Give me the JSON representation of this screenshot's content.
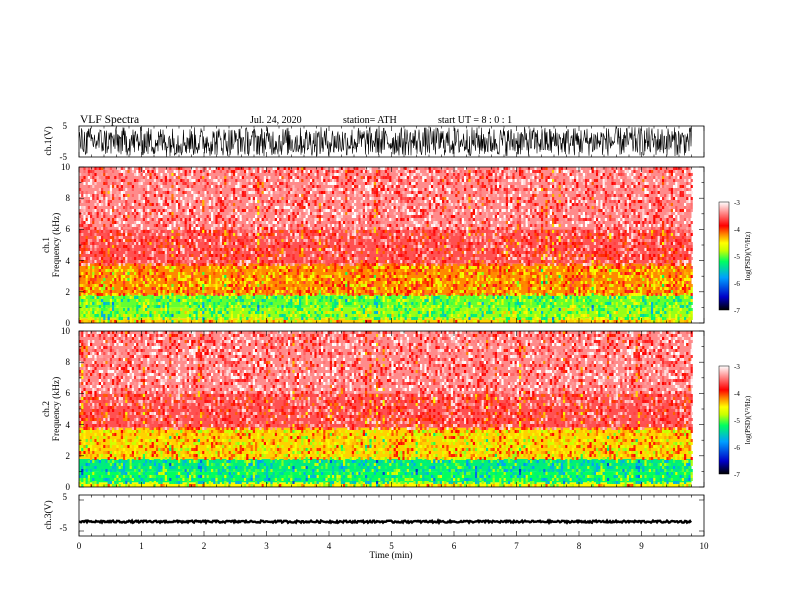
{
  "header": {
    "title": "VLF  Spectra",
    "date": "Jul.  24,  2020",
    "station": "station= ATH",
    "start": "start  UT  =    8  : 0  : 1"
  },
  "colors": {
    "colormap": [
      "#000000",
      "#0000c8",
      "#00a0ff",
      "#00ff60",
      "#c8ff00",
      "#ffff00",
      "#ff8800",
      "#ff0000",
      "#ffffff"
    ],
    "waveform": "#000000",
    "axis": "#000000"
  },
  "chart_data": [
    {
      "type": "line",
      "id": "ch1-waveform",
      "ylabel": "ch.1(V)",
      "ylim": [
        -5,
        5
      ],
      "yticks": [
        "5",
        "-5"
      ],
      "xlim": [
        0,
        10
      ],
      "description_values": {
        "amplitude_range": [
          -5,
          5
        ],
        "data_end_min": 9.8
      }
    },
    {
      "type": "heatmap",
      "id": "ch1-spectrogram",
      "ylabel_lines": [
        "ch.1",
        "Frequency  (kHz)"
      ],
      "ylim": [
        0,
        10
      ],
      "yticks": [
        "0",
        "2",
        "4",
        "6",
        "8",
        "10"
      ],
      "xlim": [
        0,
        10
      ],
      "data_end_min": 9.8,
      "colorbar": {
        "label": "log(PSD)(V²/Hz)",
        "ticks": [
          "-3",
          "-4",
          "-5",
          "-6",
          "-7"
        ],
        "range": [
          -7,
          -3
        ]
      },
      "bands": [
        {
          "fmin": 0,
          "fmax": 0.3,
          "level": -4.4
        },
        {
          "fmin": 0.3,
          "fmax": 1.0,
          "level": -4.9
        },
        {
          "fmin": 1.0,
          "fmax": 1.8,
          "level": -5.0
        },
        {
          "fmin": 1.8,
          "fmax": 3.8,
          "level": -4.2
        },
        {
          "fmin": 3.8,
          "fmax": 6.0,
          "level": -3.6
        },
        {
          "fmin": 6.0,
          "fmax": 10.0,
          "level": -3.4
        }
      ]
    },
    {
      "type": "heatmap",
      "id": "ch2-spectrogram",
      "ylabel_lines": [
        "ch.2",
        "Frequency  (kHz)"
      ],
      "ylim": [
        0,
        10
      ],
      "yticks": [
        "0",
        "2",
        "4",
        "6",
        "8",
        "10"
      ],
      "xlim": [
        0,
        10
      ],
      "data_end_min": 9.8,
      "colorbar": {
        "label": "log(PSD)(V²/Hz)",
        "ticks": [
          "-3",
          "-4",
          "-5",
          "-6",
          "-7"
        ],
        "range": [
          -7,
          -3
        ]
      },
      "bands": [
        {
          "fmin": 0,
          "fmax": 0.3,
          "level": -4.5
        },
        {
          "fmin": 0.3,
          "fmax": 1.0,
          "level": -5.2
        },
        {
          "fmin": 1.0,
          "fmax": 1.8,
          "level": -5.3
        },
        {
          "fmin": 1.8,
          "fmax": 3.8,
          "level": -4.4
        },
        {
          "fmin": 3.8,
          "fmax": 6.0,
          "level": -3.6
        },
        {
          "fmin": 6.0,
          "fmax": 10.0,
          "level": -3.4
        }
      ]
    },
    {
      "type": "line",
      "id": "ch3-waveform",
      "ylabel": "ch.3(V)",
      "ylim": [
        -5,
        5
      ],
      "yticks": [
        "5",
        "-5"
      ],
      "xlim": [
        0,
        10
      ],
      "description_values": {
        "mean": -1.5,
        "data_end_min": 9.8
      }
    }
  ],
  "xaxis": {
    "label": "Time  (min)",
    "ticks": [
      "0",
      "1",
      "2",
      "3",
      "4",
      "5",
      "6",
      "7",
      "8",
      "9",
      "10"
    ],
    "range": [
      0,
      10
    ]
  }
}
